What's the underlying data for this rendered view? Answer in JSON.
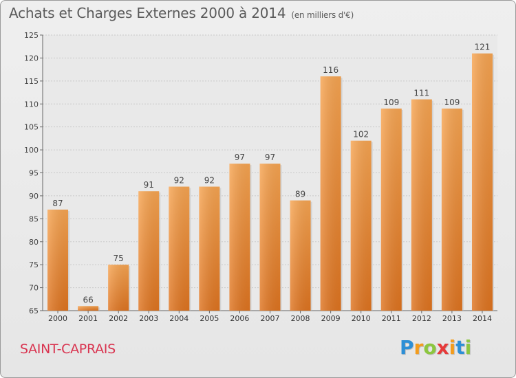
{
  "header": {
    "title": "Achats et Charges Externes 2000 à 2014",
    "unit": "(en milliers d'€)"
  },
  "footer": {
    "commune": "SAINT-CAPRAIS",
    "brand_letters": [
      "P",
      "r",
      "o",
      "x",
      "i",
      "t",
      "i"
    ],
    "brand_colors": [
      "#2c8fd6",
      "#f39c1d",
      "#8cc63f",
      "#e63a3a",
      "#f39c1d",
      "#2c8fd6",
      "#8cc63f"
    ]
  },
  "chart_data": {
    "type": "bar",
    "categories": [
      "2000",
      "2001",
      "2002",
      "2003",
      "2004",
      "2005",
      "2006",
      "2007",
      "2008",
      "2009",
      "2010",
      "2011",
      "2012",
      "2013",
      "2014"
    ],
    "values": [
      87,
      66,
      75,
      91,
      92,
      92,
      97,
      97,
      89,
      116,
      102,
      109,
      111,
      109,
      121
    ],
    "ylim": [
      65,
      125
    ],
    "yticks": [
      65,
      70,
      75,
      80,
      85,
      90,
      95,
      100,
      105,
      110,
      115,
      120,
      125
    ],
    "grid": true,
    "bar_color": "#f2963a"
  }
}
